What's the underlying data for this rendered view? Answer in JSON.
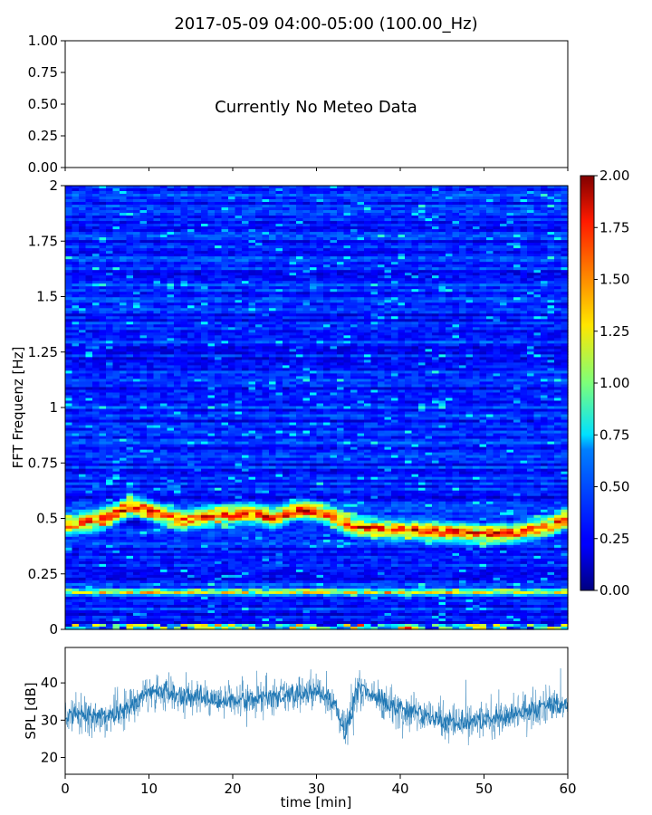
{
  "title": "2017-05-09 04:00-05:00 (100.00_Hz)",
  "chart_data": [
    {
      "type": "text",
      "id": "meteo",
      "annotation": "Currently No Meteo Data",
      "ylim": [
        0,
        1
      ],
      "yticks": [
        0.0,
        0.25,
        0.5,
        0.75,
        1.0
      ],
      "ytick_labels": [
        "0.00",
        "0.25",
        "0.50",
        "0.75",
        "1.00"
      ]
    },
    {
      "type": "heatmap",
      "id": "spectrogram",
      "ylabel": "FFT Frequenz [Hz]",
      "xlim": [
        0,
        60
      ],
      "ylim": [
        0,
        2
      ],
      "yticks": [
        0,
        0.25,
        0.5,
        0.75,
        1,
        1.25,
        1.5,
        1.75,
        2
      ],
      "ytick_labels": [
        "0",
        "0.25",
        "0.5",
        "0.75",
        "1",
        "1.25",
        "1.5",
        "1.75",
        "2"
      ],
      "colormap": "jet",
      "colorbar": {
        "range": [
          0,
          2
        ],
        "ticks": [
          0.0,
          0.25,
          0.5,
          0.75,
          1.0,
          1.25,
          1.5,
          1.75,
          2.0
        ],
        "tick_labels": [
          "0.00",
          "0.25",
          "0.50",
          "0.75",
          "1.00",
          "1.25",
          "1.50",
          "1.75",
          "2.00"
        ]
      },
      "ridge_time_min": [
        0,
        5,
        8,
        11,
        14,
        18,
        22,
        25,
        28,
        31,
        34,
        38,
        42,
        46,
        50,
        54,
        58,
        60
      ],
      "ridge_freq_hz": [
        0.47,
        0.5,
        0.56,
        0.52,
        0.49,
        0.51,
        0.52,
        0.5,
        0.54,
        0.52,
        0.47,
        0.45,
        0.45,
        0.44,
        0.43,
        0.44,
        0.47,
        0.5
      ],
      "lower_ridge_freq_hz": 0.17
    },
    {
      "type": "line",
      "id": "spl",
      "ylabel": "SPL [dB]",
      "xlabel": "time [min]",
      "xlim": [
        0,
        60
      ],
      "ylim": [
        15.5,
        49.5
      ],
      "xticks": [
        0,
        10,
        20,
        30,
        40,
        50,
        60
      ],
      "xtick_labels": [
        "0",
        "10",
        "20",
        "30",
        "40",
        "50",
        "60"
      ],
      "yticks": [
        20,
        30,
        40
      ],
      "ytick_labels": [
        "20",
        "30",
        "40"
      ],
      "line_color": "#1f77b4",
      "time_min": [
        0,
        3,
        5,
        7,
        9,
        11,
        13,
        16,
        20,
        24,
        27,
        30,
        32,
        33.5,
        35,
        37,
        40,
        44,
        47,
        50,
        53,
        56,
        58,
        60
      ],
      "spl_db_mean": [
        31,
        31.5,
        31,
        33,
        36,
        38,
        37,
        36,
        35,
        36,
        37,
        38,
        35,
        27,
        39,
        36,
        33,
        31,
        29,
        30,
        31,
        33,
        35,
        33
      ]
    }
  ]
}
